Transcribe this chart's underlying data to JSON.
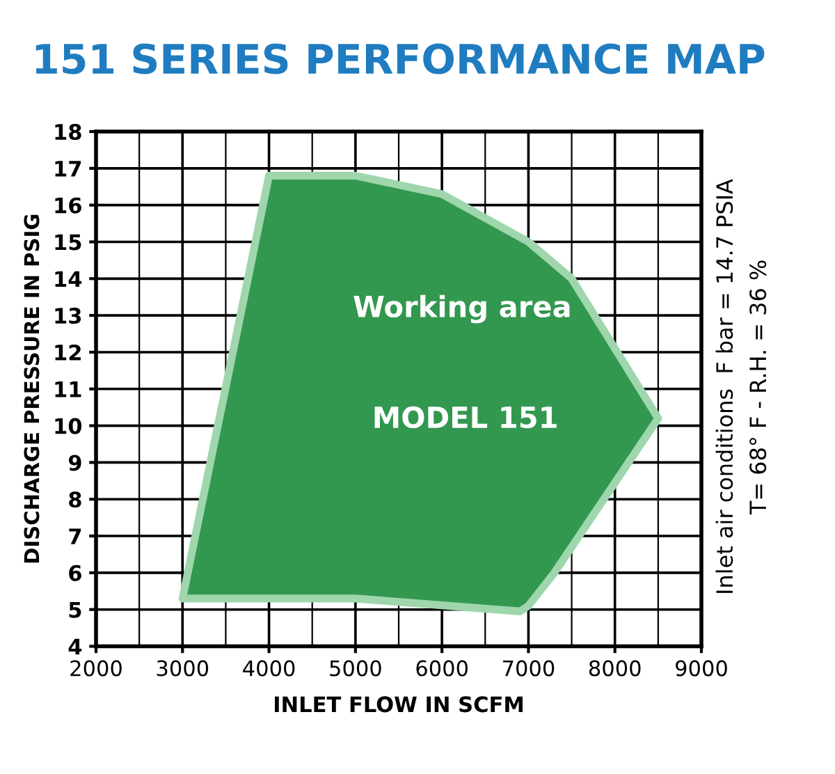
{
  "chart_data": {
    "type": "area",
    "title": "151 SERIES PERFORMANCE MAP",
    "xlabel": "INLET FLOW IN SCFM",
    "ylabel": "DISCHARGE PRESSURE IN PSIG",
    "x": [
      3000,
      4000,
      5000,
      6000,
      7000,
      7500,
      8500,
      7300,
      7000,
      6900,
      5000,
      3000
    ],
    "series": [
      {
        "color": "#33984f",
        "values": [
          5.3,
          16.8,
          16.8,
          16.3,
          15.0,
          14.0,
          10.2,
          6.0,
          5.1,
          4.95,
          5.3,
          5.3
        ]
      }
    ],
    "xlim": [
      2000,
      9000
    ],
    "xticks": [
      2000,
      3000,
      4000,
      5000,
      6000,
      7000,
      8000,
      9000
    ],
    "ylim": [
      4,
      18
    ],
    "yticks": [
      4,
      5,
      6,
      7,
      8,
      9,
      10,
      11,
      12,
      13,
      14,
      15,
      16,
      17,
      18
    ],
    "grid": true,
    "legend": false,
    "annotations": [
      "Working area",
      "MODEL 151",
      "Inlet air conditions  F bar = 14.7 PSIA",
      "T= 68° F - R.H. = 36 %"
    ]
  }
}
